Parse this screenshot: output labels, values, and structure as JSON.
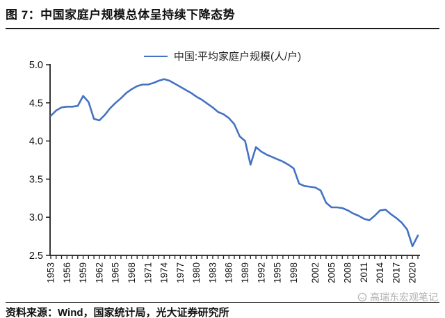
{
  "header": {
    "title": "图 7：中国家庭户规模总体呈持续下降态势"
  },
  "footer": {
    "source": "资料来源：Wind，国家统计局，光大证券研究所",
    "watermark": "高瑞东宏观笔记"
  },
  "chart_data": {
    "type": "line",
    "title": "图 7：中国家庭户规模总体呈持续下降态势",
    "legend": "中国:平均家庭户规模(人/户)",
    "legend_position": "top",
    "xlabel": "",
    "ylabel": "",
    "ylim": [
      2.5,
      5.0
    ],
    "y_ticks": [
      "5.0",
      "4.5",
      "4.0",
      "3.5",
      "3.0",
      "2.5"
    ],
    "grid": false,
    "line_color": "#4472C4",
    "axis_color": "#1f1f1f",
    "x_tick_labels": [
      1953,
      1956,
      1959,
      1962,
      1965,
      1968,
      1971,
      1974,
      1977,
      1980,
      1983,
      1986,
      1989,
      1992,
      1995,
      1998,
      2002,
      2005,
      2008,
      2011,
      2014,
      2017,
      2020
    ],
    "x": [
      1953,
      1954,
      1955,
      1956,
      1957,
      1958,
      1959,
      1960,
      1961,
      1962,
      1963,
      1964,
      1965,
      1966,
      1967,
      1968,
      1969,
      1970,
      1971,
      1972,
      1973,
      1974,
      1975,
      1976,
      1977,
      1978,
      1979,
      1980,
      1981,
      1982,
      1983,
      1984,
      1985,
      1986,
      1987,
      1988,
      1989,
      1990,
      1991,
      1992,
      1993,
      1994,
      1995,
      1996,
      1997,
      1998,
      1999,
      2000,
      2001,
      2002,
      2003,
      2004,
      2005,
      2006,
      2007,
      2008,
      2009,
      2010,
      2011,
      2012,
      2013,
      2014,
      2015,
      2016,
      2017,
      2018,
      2019,
      2020,
      2021
    ],
    "series": [
      {
        "name": "中国:平均家庭户规模(人/户)",
        "values": [
          4.33,
          4.4,
          4.44,
          4.45,
          4.45,
          4.46,
          4.59,
          4.51,
          4.29,
          4.27,
          4.34,
          4.43,
          4.5,
          4.56,
          4.63,
          4.68,
          4.72,
          4.74,
          4.74,
          4.76,
          4.79,
          4.81,
          4.79,
          4.75,
          4.71,
          4.67,
          4.63,
          4.58,
          4.54,
          4.49,
          4.44,
          4.38,
          4.35,
          4.3,
          4.22,
          4.06,
          4.0,
          3.69,
          3.92,
          3.86,
          3.82,
          3.79,
          3.76,
          3.73,
          3.69,
          3.64,
          3.44,
          3.41,
          3.4,
          3.39,
          3.35,
          3.19,
          3.13,
          3.13,
          3.12,
          3.09,
          3.05,
          3.02,
          2.98,
          2.96,
          3.02,
          3.09,
          3.1,
          3.04,
          2.99,
          2.93,
          2.84,
          2.62,
          2.76
        ]
      }
    ]
  }
}
